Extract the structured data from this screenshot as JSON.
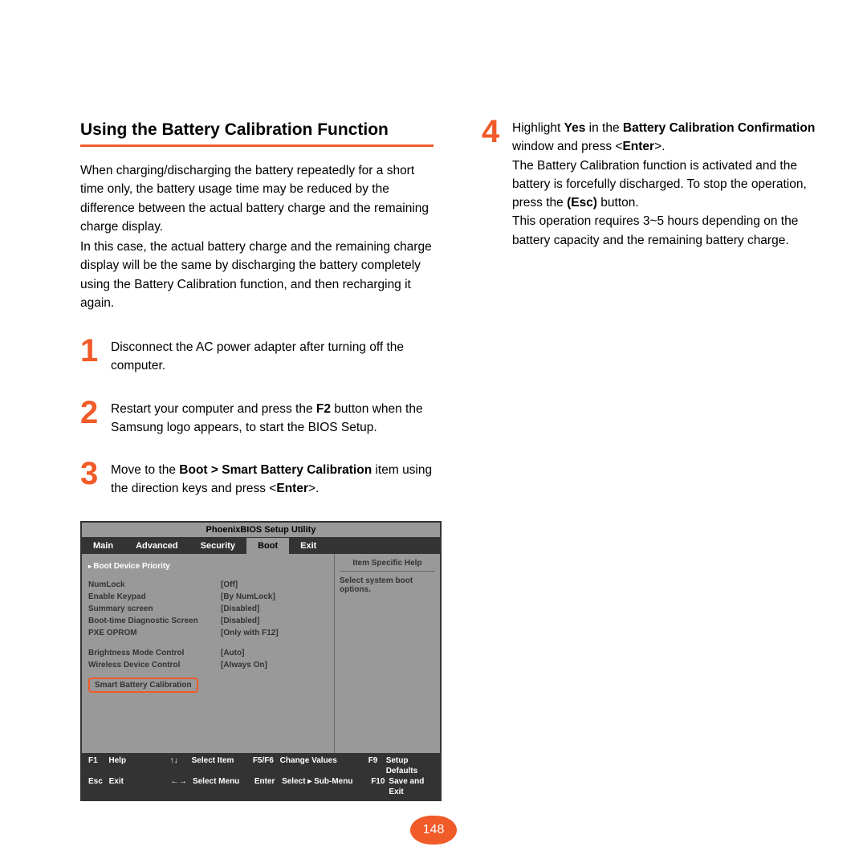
{
  "page_number": "148",
  "colors": {
    "accent": "#f15a29",
    "bios_dark": "#333333",
    "bios_gray": "#999999"
  },
  "left": {
    "title": "Using the Battery Calibration Function",
    "intro1": "When charging/discharging the battery repeatedly for a short time only, the battery usage time may be reduced by the difference between the actual battery charge and the remaining charge display.",
    "intro2": "In this case, the actual battery charge and the remaining charge display will be the same by discharging the battery completely using the Battery Calibration function, and then recharging it again.",
    "steps": [
      {
        "num": "1",
        "html": "Disconnect the AC power adapter after turning off the computer."
      },
      {
        "num": "2",
        "html": "Restart your computer and press the <b>F2</b> button when the Samsung logo appears, to start the BIOS Setup."
      },
      {
        "num": "3",
        "html": "Move to the <b>Boot > Smart Battery Calibration</b> item using the direction keys and press <<b>Enter</b>>."
      }
    ]
  },
  "right": {
    "step4": {
      "num": "4",
      "html": "Highlight <b>Yes</b> in the <b>Battery Calibration Confirmation</b> window and press <<b>Enter</b>>.<br>The Battery Calibration function is activated and the battery is forcefully discharged. To stop the operation, press the <b>(Esc)</b> button.<br>This operation requires 3~5 hours depending on the battery capacity and the remaining battery charge."
    }
  },
  "bios": {
    "title": "PhoenixBIOS Setup Utility",
    "tabs": [
      "Main",
      "Advanced",
      "Security",
      "Boot",
      "Exit"
    ],
    "active_tab": "Boot",
    "priority": "Boot Device Priority",
    "rows": [
      {
        "label": "NumLock",
        "val": "[Off]"
      },
      {
        "label": "Enable Keypad",
        "val": "[By NumLock]"
      },
      {
        "label": "Summary screen",
        "val": "[Disabled]"
      },
      {
        "label": "Boot-time Diagnostic Screen",
        "val": "[Disabled]"
      },
      {
        "label": "PXE OPROM",
        "val": "[Only with F12]"
      }
    ],
    "rows2": [
      {
        "label": "Brightness Mode Control",
        "val": "[Auto]"
      },
      {
        "label": "Wireless Device Control",
        "val": "[Always On]"
      }
    ],
    "smart": "Smart Battery Calibration",
    "help_title": "Item Specific Help",
    "help_text": "Select system boot options.",
    "footer": [
      [
        {
          "k": "F1",
          "t": "Help"
        },
        {
          "a": "↑↓",
          "t": "Select Item"
        },
        {
          "k2": "F5/F6",
          "t2": "Change Values"
        },
        {
          "k3": "F9",
          "t3": "Setup Defaults"
        }
      ],
      [
        {
          "k": "Esc",
          "t": "Exit"
        },
        {
          "a": "←→",
          "t": "Select Menu"
        },
        {
          "k2": "Enter",
          "t2": "Select ▸ Sub-Menu"
        },
        {
          "k3": "F10",
          "t3": "Save and Exit"
        }
      ]
    ]
  }
}
